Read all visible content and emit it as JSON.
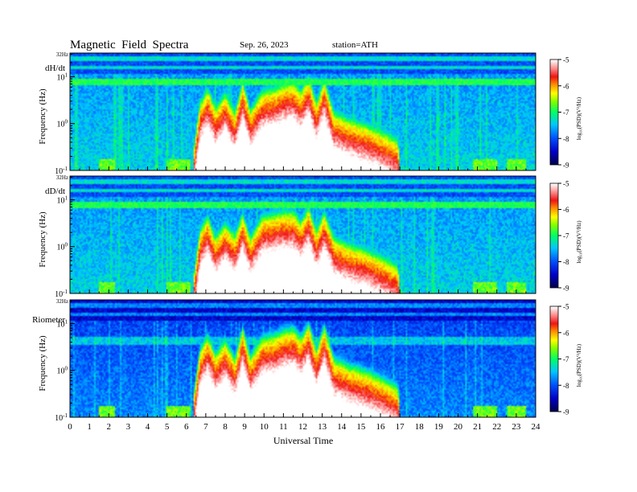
{
  "header": {
    "title": "Magnetic  Field  Spectra",
    "date": "Sep. 26, 2023",
    "station": "station=ATH"
  },
  "chart_data": [
    {
      "type": "heatmap",
      "panel_label": "dH/dt",
      "top_label": "32Hz",
      "ylabel": "Frequency  (Hz)",
      "yscale": "log",
      "ylim": [
        0.1,
        32
      ],
      "yticks": [
        {
          "base": "10",
          "exp": "-1"
        },
        {
          "base": "10",
          "exp": "0"
        },
        {
          "base": "10",
          "exp": "1"
        }
      ],
      "colorbar": {
        "label": "log₁₀(PSD)(V²/Hz)",
        "ticks": [
          "-5",
          "-6",
          "-7",
          "-8",
          "-9"
        ],
        "range": [
          -9,
          -5
        ]
      },
      "storm_envelope": [
        [
          6.4,
          -0.6
        ],
        [
          6.7,
          0.3
        ],
        [
          7.1,
          0.6
        ],
        [
          7.5,
          0.2
        ],
        [
          8.0,
          0.5
        ],
        [
          8.5,
          0.1
        ],
        [
          8.9,
          0.75
        ],
        [
          9.3,
          0.15
        ],
        [
          9.9,
          0.55
        ],
        [
          10.5,
          0.6
        ],
        [
          11.0,
          0.7
        ],
        [
          11.5,
          0.75
        ],
        [
          11.9,
          0.55
        ],
        [
          12.3,
          0.85
        ],
        [
          12.7,
          0.3
        ],
        [
          13.1,
          0.8
        ],
        [
          13.6,
          0.1
        ],
        [
          14.4,
          -0.05
        ],
        [
          15.2,
          -0.15
        ],
        [
          16.0,
          -0.3
        ],
        [
          16.9,
          -0.5
        ],
        [
          17.0,
          -1.0
        ]
      ]
    },
    {
      "type": "heatmap",
      "panel_label": "dD/dt",
      "top_label": "32Hz",
      "ylabel": "Frequency  (Hz)",
      "yscale": "log",
      "ylim": [
        0.1,
        32
      ],
      "yticks": [
        {
          "base": "10",
          "exp": "-1"
        },
        {
          "base": "10",
          "exp": "0"
        },
        {
          "base": "10",
          "exp": "1"
        }
      ],
      "colorbar": {
        "label": "log₁₀(PSD)(V²/Hz)",
        "ticks": [
          "-5",
          "-6",
          "-7",
          "-8",
          "-9"
        ],
        "range": [
          -9,
          -5
        ]
      },
      "storm_envelope": [
        [
          6.4,
          -0.7
        ],
        [
          6.7,
          0.2
        ],
        [
          7.1,
          0.5
        ],
        [
          7.5,
          0.05
        ],
        [
          8.0,
          0.35
        ],
        [
          8.5,
          0.1
        ],
        [
          8.9,
          0.55
        ],
        [
          9.3,
          0.05
        ],
        [
          9.9,
          0.5
        ],
        [
          10.5,
          0.55
        ],
        [
          11.0,
          0.6
        ],
        [
          11.5,
          0.6
        ],
        [
          11.9,
          0.4
        ],
        [
          12.3,
          0.7
        ],
        [
          12.7,
          0.2
        ],
        [
          13.1,
          0.6
        ],
        [
          13.6,
          0.05
        ],
        [
          14.4,
          -0.1
        ],
        [
          15.2,
          -0.2
        ],
        [
          16.0,
          -0.35
        ],
        [
          16.9,
          -0.55
        ],
        [
          17.0,
          -1.0
        ]
      ]
    },
    {
      "type": "heatmap",
      "panel_label": "Riometer",
      "top_label": "32Hz",
      "ylabel": "Frequency  (Hz)",
      "yscale": "log",
      "ylim": [
        0.1,
        32
      ],
      "yticks": [
        {
          "base": "10",
          "exp": "-1"
        },
        {
          "base": "10",
          "exp": "0"
        },
        {
          "base": "10",
          "exp": "1"
        }
      ],
      "colorbar": {
        "label": "log₁₀(PSD)(V²/Hz)",
        "ticks": [
          "-5",
          "-6",
          "-7",
          "-8",
          "-9"
        ],
        "range": [
          -9,
          -5
        ]
      },
      "storm_envelope": [
        [
          6.4,
          -0.6
        ],
        [
          6.7,
          0.3
        ],
        [
          7.1,
          0.6
        ],
        [
          7.5,
          0.2
        ],
        [
          8.0,
          0.5
        ],
        [
          8.5,
          0.1
        ],
        [
          8.9,
          0.75
        ],
        [
          9.3,
          0.15
        ],
        [
          9.9,
          0.55
        ],
        [
          10.5,
          0.6
        ],
        [
          11.0,
          0.7
        ],
        [
          11.5,
          0.75
        ],
        [
          11.9,
          0.55
        ],
        [
          12.3,
          0.85
        ],
        [
          12.7,
          0.3
        ],
        [
          13.1,
          0.8
        ],
        [
          13.6,
          0.1
        ],
        [
          14.4,
          -0.05
        ],
        [
          15.2,
          -0.15
        ],
        [
          16.0,
          -0.3
        ],
        [
          16.9,
          -0.5
        ],
        [
          17.0,
          -1.0
        ]
      ]
    }
  ],
  "xaxis": {
    "label": "Universal Time",
    "range": [
      0,
      24
    ],
    "ticks": [
      "0",
      "1",
      "2",
      "3",
      "4",
      "5",
      "6",
      "7",
      "8",
      "9",
      "10",
      "11",
      "12",
      "13",
      "14",
      "15",
      "16",
      "17",
      "18",
      "19",
      "20",
      "21",
      "22",
      "23",
      "24"
    ]
  }
}
